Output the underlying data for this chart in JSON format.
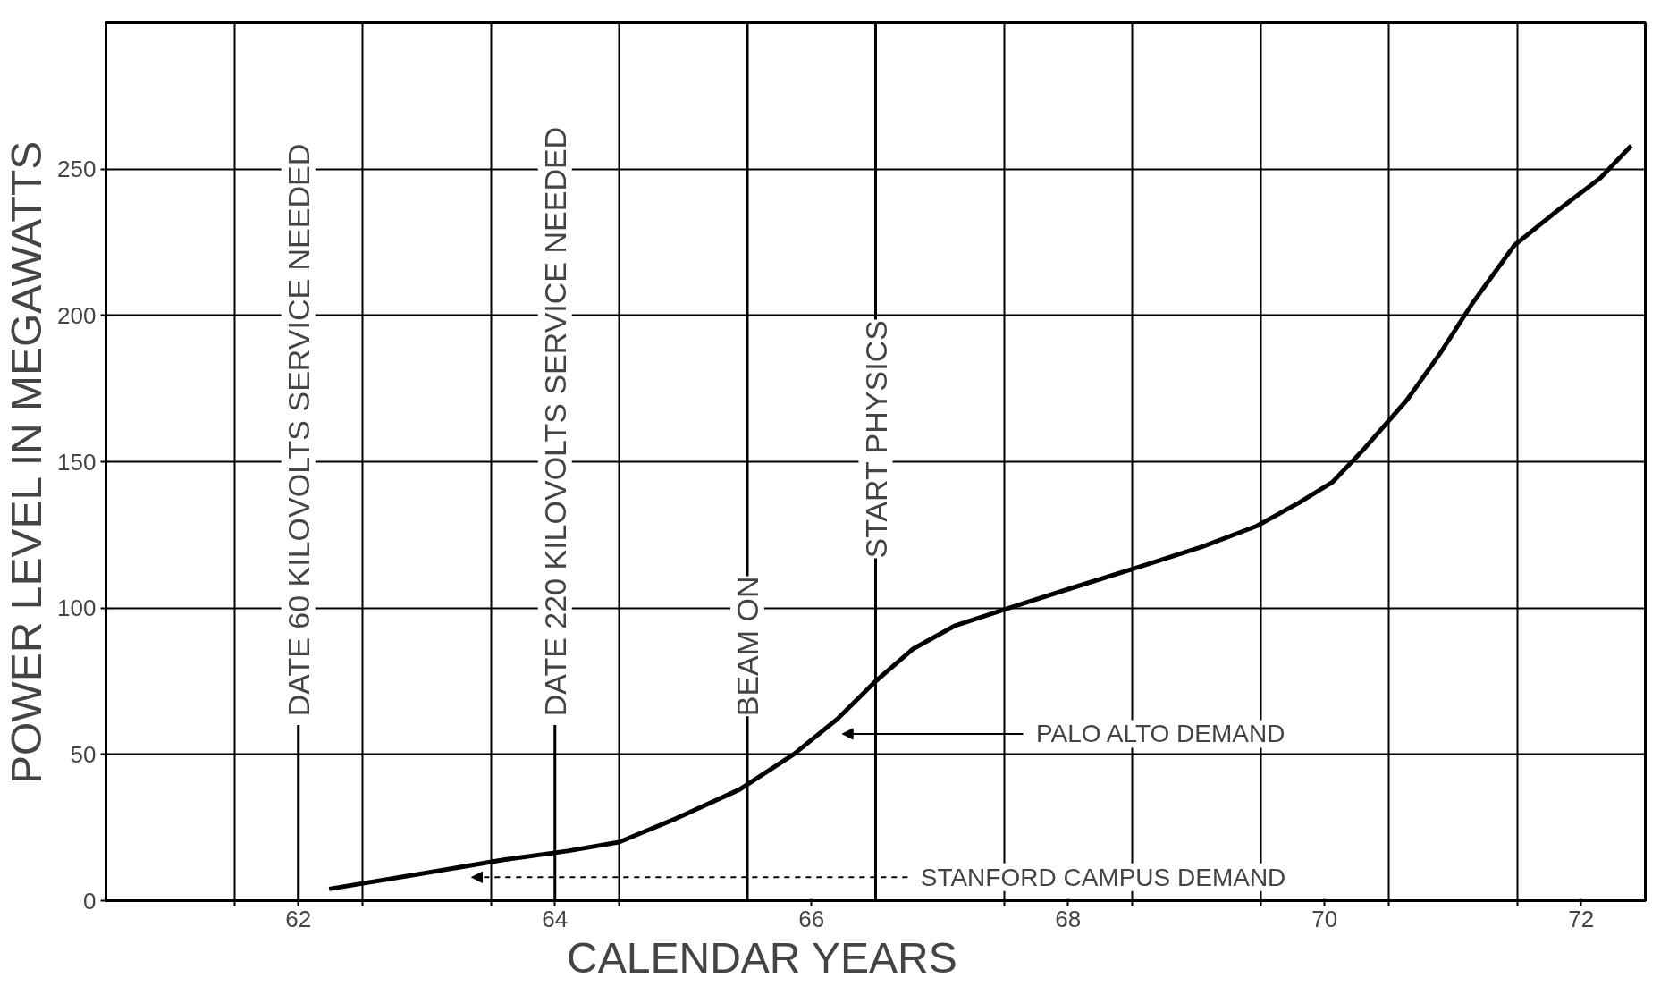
{
  "chart_data": {
    "type": "line",
    "xlabel": "CALENDAR                    YEARS",
    "ylabel": "POWER LEVEL IN MEGAWATTS",
    "xlim": [
      60.5,
      72.5
    ],
    "ylim": [
      0,
      300
    ],
    "xticks": [
      {
        "value": 61.5,
        "label": null
      },
      62,
      {
        "value": 62.5,
        "label": null
      },
      {
        "value": 63.5,
        "label": null
      },
      64,
      {
        "value": 64.5,
        "label": null
      },
      66,
      {
        "value": 67.5,
        "label": null
      },
      68,
      {
        "value": 68.5,
        "label": null
      },
      {
        "value": 69.5,
        "label": null
      },
      70,
      {
        "value": 70.5,
        "label": null
      },
      {
        "value": 71.5,
        "label": null
      },
      72
    ],
    "yticks": [
      0,
      50,
      100,
      150,
      200,
      250
    ],
    "grid": true,
    "marker": "none",
    "line_style": "solid",
    "series": [
      {
        "color": "#000000",
        "x": [
          62.24,
          62.93,
          63.6,
          64.1,
          64.5,
          64.94,
          65.44,
          65.86,
          66.2,
          66.5,
          66.79,
          67.12,
          67.54,
          68.04,
          68.55,
          69.05,
          69.47,
          69.8,
          70.06,
          70.3,
          70.64,
          70.9,
          71.15,
          71.48,
          71.82,
          72.15,
          72.39
        ],
        "values": [
          4,
          9,
          14,
          17,
          20,
          28,
          38,
          50,
          62,
          75,
          86,
          94,
          100,
          107,
          114,
          121,
          128,
          136,
          143,
          154,
          171,
          187,
          204,
          224,
          236,
          247,
          258
        ]
      }
    ],
    "ref_lines": [
      {
        "axis": "x",
        "value": 62,
        "label": "DATE 60 KILOVOLTS SERVICE NEEDED"
      },
      {
        "axis": "x",
        "value": 64,
        "label": "DATE 220 KILOVOLTS SERVICE NEEDED"
      },
      {
        "axis": "x",
        "value": 65.5,
        "label": "BEAM ON"
      },
      {
        "axis": "x",
        "value": 66.5,
        "label": "START PHYSICS"
      }
    ],
    "annotations": [
      "PALO ALTO DEMAND",
      "STANFORD CAMPUS DEMAND"
    ]
  }
}
